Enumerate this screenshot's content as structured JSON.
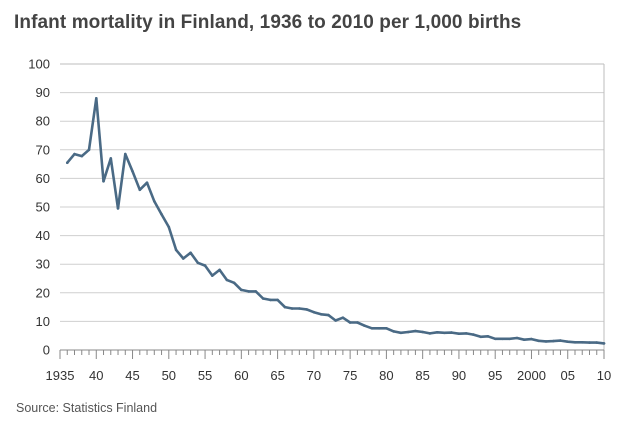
{
  "title": "Infant mortality in Finland, 1936 to 2010 per 1,000 births",
  "source": "Source: Statistics Finland",
  "colors": {
    "line": "#4a6a85",
    "grid": "#cfcfcf",
    "frame": "#bdbdbd",
    "text": "#333333"
  },
  "chart_data": {
    "type": "line",
    "title": "Infant mortality in Finland, 1936 to 2010 per 1,000 births",
    "xlabel": "",
    "ylabel": "",
    "xlim": [
      1935,
      2010
    ],
    "ylim": [
      0,
      100
    ],
    "grid": "horizontal",
    "yticks": [
      {
        "value": 0,
        "label": "0"
      },
      {
        "value": 10,
        "label": "10"
      },
      {
        "value": 20,
        "label": "20"
      },
      {
        "value": 30,
        "label": "30"
      },
      {
        "value": 40,
        "label": "40"
      },
      {
        "value": 50,
        "label": "50"
      },
      {
        "value": 60,
        "label": "60"
      },
      {
        "value": 70,
        "label": "70"
      },
      {
        "value": 80,
        "label": "80"
      },
      {
        "value": 90,
        "label": "90"
      },
      {
        "value": 100,
        "label": "100"
      }
    ],
    "xticks": [
      {
        "value": 1935,
        "label": "1935"
      },
      {
        "value": 1940,
        "label": "40"
      },
      {
        "value": 1945,
        "label": "45"
      },
      {
        "value": 1950,
        "label": "50"
      },
      {
        "value": 1955,
        "label": "55"
      },
      {
        "value": 1960,
        "label": "60"
      },
      {
        "value": 1965,
        "label": "65"
      },
      {
        "value": 1970,
        "label": "70"
      },
      {
        "value": 1975,
        "label": "75"
      },
      {
        "value": 1980,
        "label": "80"
      },
      {
        "value": 1985,
        "label": "85"
      },
      {
        "value": 1990,
        "label": "90"
      },
      {
        "value": 1995,
        "label": "95"
      },
      {
        "value": 2000,
        "label": "2000"
      },
      {
        "value": 2005,
        "label": "05"
      },
      {
        "value": 2010,
        "label": "10"
      }
    ],
    "series": [
      {
        "x": [
          1936,
          1937,
          1938,
          1939,
          1940,
          1941,
          1942,
          1943,
          1944,
          1945,
          1946,
          1947,
          1948,
          1949,
          1950,
          1951,
          1952,
          1953,
          1954,
          1955,
          1956,
          1957,
          1958,
          1959,
          1960,
          1961,
          1962,
          1963,
          1964,
          1965,
          1966,
          1967,
          1968,
          1969,
          1970,
          1971,
          1972,
          1973,
          1974,
          1975,
          1976,
          1977,
          1978,
          1979,
          1980,
          1981,
          1982,
          1983,
          1984,
          1985,
          1986,
          1987,
          1988,
          1989,
          1990,
          1991,
          1992,
          1993,
          1994,
          1995,
          1996,
          1997,
          1998,
          1999,
          2000,
          2001,
          2002,
          2003,
          2004,
          2005,
          2006,
          2007,
          2008,
          2009,
          2010
        ],
        "values": [
          65.5,
          68.5,
          67.8,
          70,
          88,
          59,
          67,
          49.5,
          68.5,
          62.5,
          56,
          58.5,
          52,
          47.5,
          43,
          35,
          32,
          34,
          30.5,
          29.5,
          26,
          28,
          24.5,
          23.5,
          21,
          20.5,
          20.5,
          18,
          17.5,
          17.5,
          15,
          14.5,
          14.5,
          14.2,
          13.2,
          12.5,
          12.2,
          10.3,
          11.3,
          9.6,
          9.6,
          8.5,
          7.6,
          7.6,
          7.6,
          6.5,
          6.0,
          6.3,
          6.6,
          6.3,
          5.8,
          6.2,
          6.0,
          6.1,
          5.7,
          5.8,
          5.4,
          4.6,
          4.8,
          3.9,
          3.9,
          3.9,
          4.2,
          3.6,
          3.8,
          3.2,
          3.0,
          3.1,
          3.3,
          2.9,
          2.7,
          2.7,
          2.6,
          2.6,
          2.3
        ]
      }
    ]
  }
}
